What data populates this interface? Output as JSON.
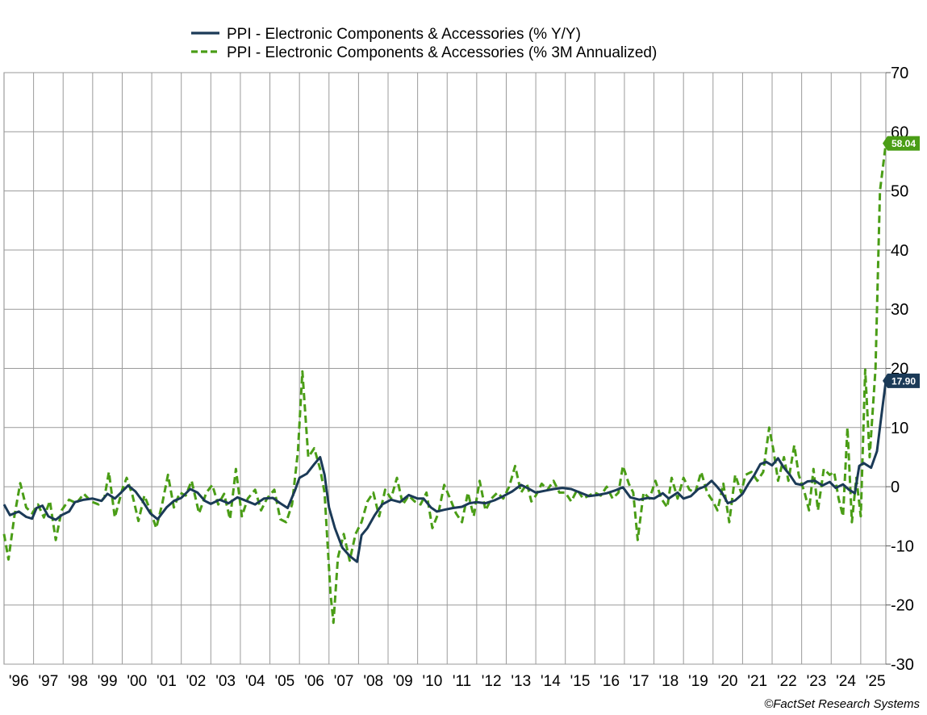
{
  "chart_data": {
    "type": "line",
    "title": "",
    "xlabel": "",
    "ylabel": "",
    "ylim": [
      -30,
      70
    ],
    "yticks": [
      70,
      60,
      50,
      40,
      30,
      20,
      10,
      0,
      -10,
      -20,
      -30
    ],
    "ytick_labels": [
      "70",
      "60",
      "50",
      "40",
      "30",
      "20",
      "10",
      "0",
      "-10",
      "-20",
      "-30"
    ],
    "xlim": [
      1996.0,
      2025.85
    ],
    "x_tick_labels": [
      "'96",
      "'97",
      "'98",
      "'99",
      "'00",
      "'01",
      "'02",
      "'03",
      "'04",
      "'05",
      "'06",
      "'07",
      "'08",
      "'09",
      "'10",
      "'11",
      "'12",
      "'13",
      "'14",
      "'15",
      "'16",
      "'17",
      "'18",
      "'19",
      "'20",
      "'21",
      "'22",
      "'23",
      "'24",
      "'25"
    ],
    "grid": true,
    "legend_position": "top-center",
    "credit": "©FactSet Research Systems",
    "series": [
      {
        "name": "PPI - Electronic Components & Accessories (% Y/Y)",
        "color": "#1b3a57",
        "style": "solid",
        "last_value_label": "17.90",
        "points": [
          [
            1996.0,
            -3.0
          ],
          [
            1996.2,
            -4.8
          ],
          [
            1996.5,
            -4.2
          ],
          [
            1996.75,
            -5.1
          ],
          [
            1996.95,
            -5.4
          ],
          [
            1997.1,
            -3.6
          ],
          [
            1997.3,
            -3.2
          ],
          [
            1997.5,
            -5.0
          ],
          [
            1997.75,
            -5.6
          ],
          [
            1997.95,
            -4.8
          ],
          [
            1998.2,
            -4.2
          ],
          [
            1998.4,
            -2.6
          ],
          [
            1998.7,
            -2.2
          ],
          [
            1999.0,
            -2.0
          ],
          [
            1999.3,
            -2.4
          ],
          [
            1999.5,
            -1.2
          ],
          [
            1999.75,
            -2.0
          ],
          [
            2000.0,
            -0.8
          ],
          [
            2000.2,
            0.2
          ],
          [
            2000.45,
            -0.8
          ],
          [
            2000.7,
            -2.5
          ],
          [
            2000.95,
            -4.5
          ],
          [
            2001.2,
            -5.5
          ],
          [
            2001.5,
            -3.5
          ],
          [
            2001.75,
            -2.4
          ],
          [
            2002.0,
            -1.9
          ],
          [
            2002.3,
            -0.4
          ],
          [
            2002.55,
            -1.0
          ],
          [
            2002.8,
            -2.4
          ],
          [
            2003.0,
            -2.9
          ],
          [
            2003.3,
            -2.2
          ],
          [
            2003.6,
            -2.8
          ],
          [
            2003.9,
            -1.8
          ],
          [
            2004.2,
            -2.4
          ],
          [
            2004.5,
            -3.0
          ],
          [
            2004.8,
            -2.0
          ],
          [
            2005.1,
            -1.9
          ],
          [
            2005.35,
            -2.8
          ],
          [
            2005.6,
            -3.6
          ],
          [
            2005.85,
            -0.6
          ],
          [
            2006.0,
            1.5
          ],
          [
            2006.25,
            2.2
          ],
          [
            2006.5,
            3.8
          ],
          [
            2006.7,
            5.0
          ],
          [
            2006.85,
            2.0
          ],
          [
            2007.0,
            -3.5
          ],
          [
            2007.2,
            -7.0
          ],
          [
            2007.45,
            -10.3
          ],
          [
            2007.7,
            -11.7
          ],
          [
            2007.95,
            -12.7
          ],
          [
            2008.1,
            -8.2
          ],
          [
            2008.3,
            -7.0
          ],
          [
            2008.55,
            -4.8
          ],
          [
            2008.8,
            -3.0
          ],
          [
            2009.1,
            -2.2
          ],
          [
            2009.4,
            -2.6
          ],
          [
            2009.7,
            -1.4
          ],
          [
            2010.0,
            -2.0
          ],
          [
            2010.2,
            -2.0
          ],
          [
            2010.45,
            -3.5
          ],
          [
            2010.65,
            -4.2
          ],
          [
            2010.9,
            -3.9
          ],
          [
            2011.2,
            -3.6
          ],
          [
            2011.5,
            -3.4
          ],
          [
            2011.75,
            -2.8
          ],
          [
            2012.0,
            -2.6
          ],
          [
            2012.3,
            -2.8
          ],
          [
            2012.6,
            -2.3
          ],
          [
            2012.9,
            -1.6
          ],
          [
            2013.2,
            -0.8
          ],
          [
            2013.5,
            0.3
          ],
          [
            2013.75,
            -0.3
          ],
          [
            2014.0,
            -1.0
          ],
          [
            2014.3,
            -0.7
          ],
          [
            2014.6,
            -0.4
          ],
          [
            2014.9,
            -0.2
          ],
          [
            2015.2,
            -0.4
          ],
          [
            2015.5,
            -1.0
          ],
          [
            2015.8,
            -1.6
          ],
          [
            2016.1,
            -1.4
          ],
          [
            2016.4,
            -1.1
          ],
          [
            2016.7,
            -0.6
          ],
          [
            2016.95,
            -0.1
          ],
          [
            2017.2,
            -1.8
          ],
          [
            2017.5,
            -2.2
          ],
          [
            2017.8,
            -1.9
          ],
          [
            2018.0,
            -2.0
          ],
          [
            2018.3,
            -1.1
          ],
          [
            2018.5,
            -2.0
          ],
          [
            2018.8,
            -1.0
          ],
          [
            2019.0,
            -2.0
          ],
          [
            2019.25,
            -1.6
          ],
          [
            2019.5,
            -0.4
          ],
          [
            2019.75,
            0.1
          ],
          [
            2019.95,
            1.0
          ],
          [
            2020.1,
            0.2
          ],
          [
            2020.3,
            -1.0
          ],
          [
            2020.5,
            -2.8
          ],
          [
            2020.75,
            -2.3
          ],
          [
            2021.0,
            -1.2
          ],
          [
            2021.2,
            0.5
          ],
          [
            2021.4,
            2.0
          ],
          [
            2021.6,
            3.8
          ],
          [
            2021.8,
            4.2
          ],
          [
            2022.0,
            3.6
          ],
          [
            2022.2,
            4.8
          ],
          [
            2022.4,
            3.2
          ],
          [
            2022.6,
            2.0
          ],
          [
            2022.8,
            0.5
          ],
          [
            2023.0,
            0.3
          ],
          [
            2023.2,
            0.9
          ],
          [
            2023.45,
            1.0
          ],
          [
            2023.7,
            0.2
          ],
          [
            2023.95,
            0.8
          ],
          [
            2024.15,
            -0.2
          ],
          [
            2024.4,
            0.4
          ],
          [
            2024.6,
            -0.5
          ],
          [
            2024.8,
            -1.1
          ],
          [
            2024.95,
            3.5
          ],
          [
            2025.1,
            4.0
          ],
          [
            2025.35,
            3.2
          ],
          [
            2025.55,
            6.0
          ],
          [
            2025.7,
            12.0
          ],
          [
            2025.85,
            17.9
          ]
        ]
      },
      {
        "name": "PPI - Electronic Components & Accessories (% 3M Annualized)",
        "color": "#4a9d16",
        "style": "dashed",
        "last_value_label": "58.04",
        "points": [
          [
            1996.0,
            -8.0
          ],
          [
            1996.15,
            -12.3
          ],
          [
            1996.35,
            -5.0
          ],
          [
            1996.55,
            0.6
          ],
          [
            1996.75,
            -3.5
          ],
          [
            1996.95,
            -4.5
          ],
          [
            1997.15,
            -3.0
          ],
          [
            1997.35,
            -5.2
          ],
          [
            1997.55,
            -2.4
          ],
          [
            1997.75,
            -9.0
          ],
          [
            1997.95,
            -4.0
          ],
          [
            1998.2,
            -2.2
          ],
          [
            1998.45,
            -2.8
          ],
          [
            1998.7,
            -1.2
          ],
          [
            1998.95,
            -2.5
          ],
          [
            1999.2,
            -3.0
          ],
          [
            1999.4,
            -1.8
          ],
          [
            1999.55,
            2.5
          ],
          [
            1999.75,
            -5.2
          ],
          [
            2000.0,
            -0.5
          ],
          [
            2000.15,
            1.5
          ],
          [
            2000.35,
            -1.5
          ],
          [
            2000.55,
            -5.8
          ],
          [
            2000.75,
            -1.5
          ],
          [
            2000.95,
            -4.0
          ],
          [
            2001.15,
            -7.0
          ],
          [
            2001.35,
            -3.0
          ],
          [
            2001.55,
            2.0
          ],
          [
            2001.75,
            -3.5
          ],
          [
            2001.95,
            -1.0
          ],
          [
            2002.15,
            -1.5
          ],
          [
            2002.35,
            1.0
          ],
          [
            2002.6,
            -4.5
          ],
          [
            2002.85,
            -1.0
          ],
          [
            2003.05,
            0.3
          ],
          [
            2003.25,
            -3.0
          ],
          [
            2003.45,
            -1.2
          ],
          [
            2003.65,
            -5.5
          ],
          [
            2003.85,
            3.0
          ],
          [
            2004.05,
            -5.0
          ],
          [
            2004.25,
            -2.0
          ],
          [
            2004.5,
            -0.5
          ],
          [
            2004.7,
            -4.0
          ],
          [
            2004.9,
            -2.0
          ],
          [
            2005.15,
            -0.5
          ],
          [
            2005.35,
            -5.5
          ],
          [
            2005.55,
            -6.0
          ],
          [
            2005.75,
            -3.0
          ],
          [
            2005.95,
            6.0
          ],
          [
            2006.1,
            19.5
          ],
          [
            2006.3,
            5.0
          ],
          [
            2006.5,
            6.5
          ],
          [
            2006.7,
            3.0
          ],
          [
            2006.85,
            -1.0
          ],
          [
            2007.05,
            -18.0
          ],
          [
            2007.15,
            -23.0
          ],
          [
            2007.3,
            -12.0
          ],
          [
            2007.5,
            -8.0
          ],
          [
            2007.7,
            -12.5
          ],
          [
            2007.9,
            -8.0
          ],
          [
            2008.1,
            -6.0
          ],
          [
            2008.3,
            -2.5
          ],
          [
            2008.5,
            -1.0
          ],
          [
            2008.7,
            -5.0
          ],
          [
            2008.9,
            -0.5
          ],
          [
            2009.1,
            -2.0
          ],
          [
            2009.3,
            1.5
          ],
          [
            2009.5,
            -3.0
          ],
          [
            2009.7,
            -1.5
          ],
          [
            2009.9,
            -2.5
          ],
          [
            2010.1,
            -3.0
          ],
          [
            2010.3,
            -1.0
          ],
          [
            2010.5,
            -7.0
          ],
          [
            2010.7,
            -4.5
          ],
          [
            2010.9,
            0.3
          ],
          [
            2011.1,
            -2.0
          ],
          [
            2011.3,
            -4.5
          ],
          [
            2011.5,
            -6.0
          ],
          [
            2011.7,
            -1.0
          ],
          [
            2011.9,
            -5.0
          ],
          [
            2012.1,
            1.0
          ],
          [
            2012.3,
            -4.0
          ],
          [
            2012.5,
            -2.0
          ],
          [
            2012.7,
            -1.0
          ],
          [
            2012.9,
            -2.0
          ],
          [
            2013.1,
            0.0
          ],
          [
            2013.3,
            3.5
          ],
          [
            2013.5,
            -1.0
          ],
          [
            2013.7,
            0.5
          ],
          [
            2013.85,
            -2.5
          ],
          [
            2014.0,
            -1.5
          ],
          [
            2014.2,
            0.5
          ],
          [
            2014.4,
            -0.5
          ],
          [
            2014.6,
            1.0
          ],
          [
            2014.8,
            -1.0
          ],
          [
            2015.0,
            -1.0
          ],
          [
            2015.2,
            -2.5
          ],
          [
            2015.4,
            -0.5
          ],
          [
            2015.6,
            -2.0
          ],
          [
            2015.8,
            -1.5
          ],
          [
            2016.0,
            -1.0
          ],
          [
            2016.2,
            -1.5
          ],
          [
            2016.4,
            0.0
          ],
          [
            2016.6,
            -2.0
          ],
          [
            2016.8,
            -1.0
          ],
          [
            2016.95,
            3.5
          ],
          [
            2017.15,
            0.5
          ],
          [
            2017.3,
            -1.0
          ],
          [
            2017.45,
            -9.0
          ],
          [
            2017.65,
            -1.0
          ],
          [
            2017.85,
            -2.0
          ],
          [
            2018.05,
            1.0
          ],
          [
            2018.25,
            -2.0
          ],
          [
            2018.45,
            -3.5
          ],
          [
            2018.6,
            1.5
          ],
          [
            2018.8,
            -2.0
          ],
          [
            2019.0,
            1.5
          ],
          [
            2019.2,
            -0.5
          ],
          [
            2019.4,
            -1.0
          ],
          [
            2019.6,
            2.5
          ],
          [
            2019.8,
            -1.0
          ],
          [
            2020.0,
            -2.5
          ],
          [
            2020.15,
            -4.0
          ],
          [
            2020.35,
            0.5
          ],
          [
            2020.55,
            -6.0
          ],
          [
            2020.75,
            2.0
          ],
          [
            2020.95,
            -1.0
          ],
          [
            2021.1,
            2.0
          ],
          [
            2021.3,
            2.5
          ],
          [
            2021.5,
            1.0
          ],
          [
            2021.7,
            2.5
          ],
          [
            2021.9,
            10.0
          ],
          [
            2022.05,
            6.0
          ],
          [
            2022.2,
            1.0
          ],
          [
            2022.4,
            5.0
          ],
          [
            2022.55,
            1.0
          ],
          [
            2022.75,
            7.0
          ],
          [
            2022.9,
            2.0
          ],
          [
            2023.1,
            -1.0
          ],
          [
            2023.25,
            -4.0
          ],
          [
            2023.4,
            3.0
          ],
          [
            2023.55,
            -4.0
          ],
          [
            2023.75,
            3.0
          ],
          [
            2023.95,
            2.0
          ],
          [
            2024.1,
            2.5
          ],
          [
            2024.25,
            -2.0
          ],
          [
            2024.4,
            -5.0
          ],
          [
            2024.55,
            10.0
          ],
          [
            2024.7,
            -6.0
          ],
          [
            2024.85,
            1.5
          ],
          [
            2025.0,
            -5.0
          ],
          [
            2025.15,
            19.8
          ],
          [
            2025.3,
            5.0
          ],
          [
            2025.5,
            20.0
          ],
          [
            2025.65,
            50.0
          ],
          [
            2025.85,
            58.04
          ]
        ]
      }
    ]
  }
}
